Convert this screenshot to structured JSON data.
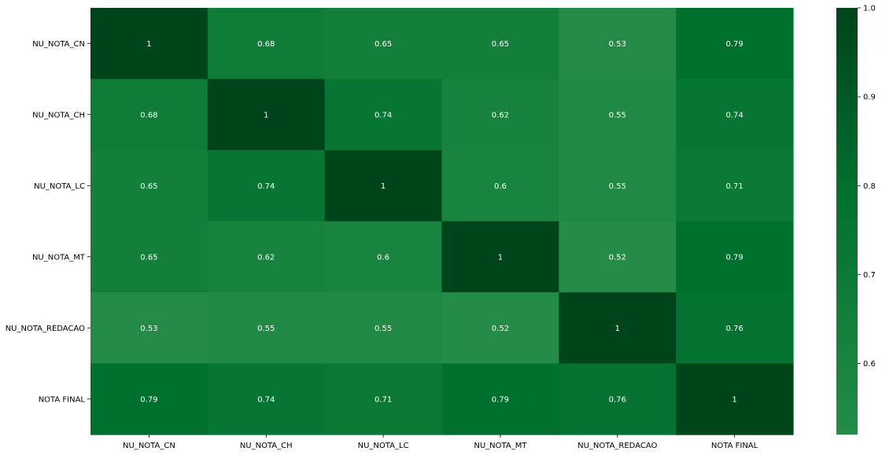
{
  "chart_data": {
    "type": "heatmap",
    "title": "",
    "xlabel": "",
    "ylabel": "",
    "x_categories": [
      "NU_NOTA_CN",
      "NU_NOTA_CH",
      "NU_NOTA_LC",
      "NU_NOTA_MT",
      "NU_NOTA_REDACAO",
      "NOTA FINAL"
    ],
    "y_categories": [
      "NU_NOTA_CN",
      "NU_NOTA_CH",
      "NU_NOTA_LC",
      "NU_NOTA_MT",
      "NU_NOTA_REDACAO",
      "NOTA FINAL"
    ],
    "values": [
      [
        1,
        0.68,
        0.65,
        0.65,
        0.53,
        0.79
      ],
      [
        0.68,
        1,
        0.74,
        0.62,
        0.55,
        0.74
      ],
      [
        0.65,
        0.74,
        1,
        0.6,
        0.55,
        0.71
      ],
      [
        0.65,
        0.62,
        0.6,
        1,
        0.52,
        0.79
      ],
      [
        0.53,
        0.55,
        0.55,
        0.52,
        1,
        0.76
      ],
      [
        0.79,
        0.74,
        0.71,
        0.79,
        0.76,
        1
      ]
    ],
    "annotations": true,
    "colormap": "Greens",
    "colors": {
      "low": "#248c46",
      "mid": "#00702e",
      "high": "#00441b",
      "annotation": "#ffffff"
    },
    "colorbar": {
      "range": [
        0.52,
        1.0
      ],
      "ticks": [
        0.6,
        0.7,
        0.8,
        0.9,
        1.0
      ],
      "tick_labels": [
        "0.6",
        "0.7",
        "0.8",
        "0.9",
        "1.0"
      ]
    }
  }
}
